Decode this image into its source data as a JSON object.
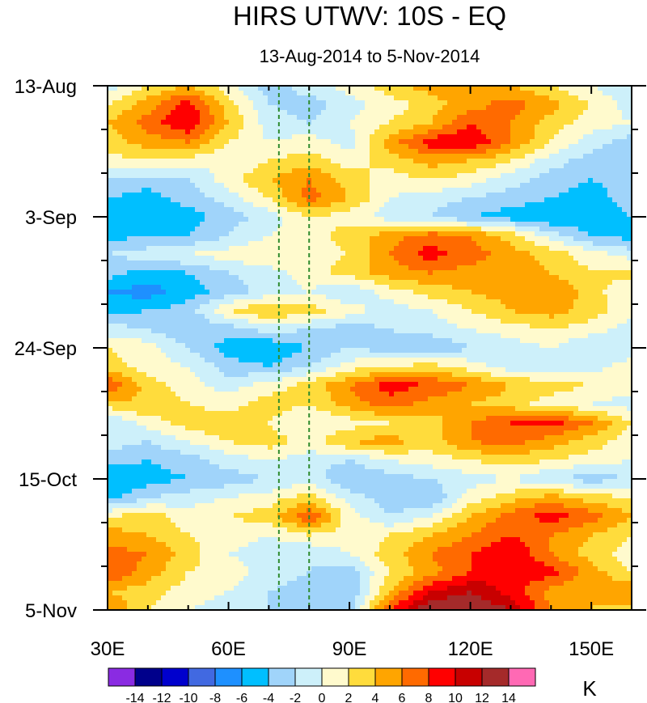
{
  "chart_data": {
    "type": "heatmap",
    "title": "HIRS UTWV: 10S - EQ",
    "subtitle": "13-Aug-2014 to 5-Nov-2014",
    "xlabel": "",
    "ylabel": "",
    "x_range": [
      30,
      160
    ],
    "x_units": "degrees East longitude",
    "y_range_days": [
      0,
      84
    ],
    "y_start_date": "13-Aug-2014",
    "y_direction": "time increases downward",
    "x_ticks": [
      {
        "value": 30,
        "label": "30E"
      },
      {
        "value": 60,
        "label": "60E"
      },
      {
        "value": 90,
        "label": "90E"
      },
      {
        "value": 120,
        "label": "120E"
      },
      {
        "value": 150,
        "label": "150E"
      }
    ],
    "y_ticks": [
      {
        "day": 0,
        "label": "13-Aug"
      },
      {
        "day": 21,
        "label": "3-Sep"
      },
      {
        "day": 42,
        "label": "24-Sep"
      },
      {
        "day": 63,
        "label": "15-Oct"
      },
      {
        "day": 84,
        "label": "5-Nov"
      }
    ],
    "reference_lines": [
      {
        "axis": "x",
        "value": 72.5,
        "style": "dashed",
        "color": "#2e8b2e"
      },
      {
        "axis": "x",
        "value": 80,
        "style": "dashed",
        "color": "#2e8b2e"
      }
    ],
    "colorbar": {
      "unit": "K",
      "levels": [
        -14,
        -12,
        -10,
        -8,
        -6,
        -4,
        -2,
        0,
        2,
        4,
        6,
        8,
        10,
        12,
        14
      ],
      "labels": [
        "-14",
        "-12",
        "-10",
        "-8",
        "-6",
        "-4",
        "-2",
        "0",
        "2",
        "4",
        "6",
        "8",
        "10",
        "12",
        "14"
      ],
      "colors": [
        "#8a2be2",
        "#00008b",
        "#0000cd",
        "#4169e1",
        "#1e90ff",
        "#00bfff",
        "#a0d4fa",
        "#cdf0fa",
        "#fffacd",
        "#ffdc3c",
        "#ffa500",
        "#ff6a00",
        "#ff0000",
        "#c80000",
        "#a52a2a",
        "#ff69b4"
      ]
    },
    "field": {
      "description": "Approximate upper-tropospheric water vapor anomaly (K) read from the contour plot; rows = dates (every 3 days from 13-Aug), columns = longitude every 10 degrees.",
      "x": [
        30,
        40,
        50,
        60,
        70,
        80,
        90,
        100,
        110,
        120,
        130,
        140,
        150,
        160
      ],
      "y_days": [
        0,
        3,
        6,
        9,
        12,
        15,
        18,
        21,
        24,
        27,
        30,
        33,
        36,
        39,
        42,
        45,
        48,
        51,
        54,
        57,
        60,
        63,
        66,
        69,
        72,
        75,
        78,
        81,
        84
      ],
      "values": [
        [
          -1,
          2,
          4,
          1,
          -3,
          -1,
          1,
          3,
          5,
          6,
          4,
          2,
          0,
          -2
        ],
        [
          2,
          5,
          9,
          3,
          -2,
          -3,
          -1,
          1,
          3,
          5,
          7,
          5,
          2,
          -1
        ],
        [
          4,
          7,
          10,
          4,
          -1,
          -2,
          0,
          2,
          4,
          8,
          6,
          3,
          1,
          0
        ],
        [
          3,
          5,
          6,
          2,
          0,
          1,
          -1,
          5,
          9,
          10,
          6,
          2,
          -1,
          -3
        ],
        [
          1,
          2,
          1,
          0,
          2,
          3,
          1,
          3,
          5,
          4,
          2,
          -1,
          -3,
          -4
        ],
        [
          -2,
          -3,
          -2,
          1,
          4,
          6,
          3,
          1,
          2,
          1,
          -1,
          -3,
          -4,
          -3
        ],
        [
          -4,
          -5,
          -3,
          -1,
          2,
          7,
          4,
          0,
          -1,
          -2,
          -3,
          -4,
          -5,
          -3
        ],
        [
          -6,
          -6,
          -5,
          -3,
          -1,
          2,
          1,
          -1,
          -2,
          -4,
          -5,
          -6,
          -6,
          -4
        ],
        [
          -5,
          -4,
          -4,
          -2,
          0,
          1,
          3,
          5,
          7,
          6,
          3,
          -1,
          -4,
          -5
        ],
        [
          -2,
          -1,
          0,
          1,
          2,
          1,
          2,
          6,
          9,
          7,
          5,
          3,
          1,
          -1
        ],
        [
          -3,
          -5,
          -4,
          -2,
          -1,
          1,
          3,
          5,
          6,
          5,
          6,
          4,
          2,
          3
        ],
        [
          -6,
          -7,
          -5,
          -3,
          -1,
          0,
          -2,
          1,
          3,
          4,
          5,
          6,
          3,
          0
        ],
        [
          -5,
          -4,
          -3,
          2,
          4,
          3,
          1,
          -1,
          0,
          2,
          4,
          5,
          3,
          1
        ],
        [
          -1,
          -2,
          -4,
          -3,
          -1,
          -2,
          -3,
          -2,
          -1,
          0,
          1,
          2,
          1,
          -1
        ],
        [
          2,
          1,
          -2,
          -5,
          -6,
          -4,
          -2,
          -3,
          -4,
          -2,
          -1,
          0,
          -2,
          -1
        ],
        [
          3,
          1,
          0,
          -3,
          -4,
          -2,
          1,
          2,
          3,
          1,
          -1,
          -2,
          -1,
          1
        ],
        [
          8,
          3,
          1,
          -1,
          1,
          3,
          6,
          9,
          8,
          6,
          4,
          3,
          2,
          1
        ],
        [
          3,
          4,
          2,
          1,
          3,
          2,
          5,
          7,
          5,
          4,
          3,
          1,
          0,
          -1
        ],
        [
          -2,
          1,
          3,
          4,
          2,
          0,
          1,
          2,
          3,
          6,
          8,
          9,
          6,
          2
        ],
        [
          -1,
          -2,
          0,
          2,
          3,
          1,
          4,
          5,
          3,
          6,
          7,
          5,
          3,
          1
        ],
        [
          -3,
          -4,
          -3,
          -1,
          0,
          -1,
          -2,
          0,
          1,
          2,
          3,
          2,
          1,
          0
        ],
        [
          -6,
          -5,
          -4,
          -3,
          -2,
          -1,
          -4,
          -3,
          -2,
          -1,
          0,
          -2,
          -3,
          -2
        ],
        [
          -5,
          -2,
          -1,
          0,
          1,
          3,
          -1,
          -3,
          -4,
          1,
          3,
          5,
          3,
          2
        ],
        [
          2,
          3,
          1,
          2,
          3,
          8,
          1,
          -2,
          0,
          4,
          7,
          9,
          7,
          4
        ],
        [
          5,
          4,
          2,
          1,
          0,
          2,
          1,
          2,
          4,
          6,
          8,
          6,
          4,
          2
        ],
        [
          7,
          6,
          3,
          0,
          -1,
          -2,
          0,
          3,
          6,
          8,
          10,
          6,
          3,
          1
        ],
        [
          8,
          5,
          2,
          1,
          -1,
          -2,
          -3,
          2,
          5,
          8,
          10,
          9,
          5,
          2
        ],
        [
          4,
          3,
          1,
          0,
          -2,
          -3,
          -4,
          4,
          10,
          12,
          9,
          5,
          4,
          6
        ],
        [
          6,
          2,
          0,
          -1,
          -2,
          -3,
          -3,
          8,
          14,
          14,
          12,
          6,
          4,
          3
        ]
      ]
    }
  }
}
